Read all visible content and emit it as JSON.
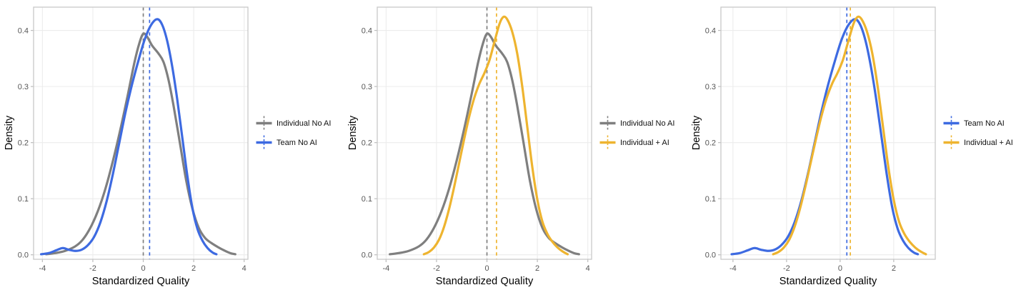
{
  "chart_data": {
    "type": "line",
    "chart_kind": "kernel-density-comparison",
    "title": "",
    "xlabel": "Standardized Quality",
    "ylabel": "Density",
    "grid": true,
    "legend_position": "right-of-each-panel",
    "panel_background": "#ffffff",
    "gridline_color": "#ececec",
    "panel_border_color": "#c8c8c8",
    "tick_mark_color": "#bdbdbd",
    "tick_label_color": "#555555",
    "series_defs": {
      "individual_no_ai": {
        "label": "Individual No AI",
        "color": "#7F7F7F",
        "mean_vline": 0.0,
        "points": [
          [
            -3.85,
            0.001
          ],
          [
            -3.5,
            0.003
          ],
          [
            -3.1,
            0.007
          ],
          [
            -2.7,
            0.015
          ],
          [
            -2.4,
            0.027
          ],
          [
            -2.1,
            0.048
          ],
          [
            -1.8,
            0.078
          ],
          [
            -1.5,
            0.118
          ],
          [
            -1.2,
            0.168
          ],
          [
            -0.9,
            0.225
          ],
          [
            -0.6,
            0.288
          ],
          [
            -0.35,
            0.343
          ],
          [
            -0.15,
            0.378
          ],
          [
            0.0,
            0.394
          ],
          [
            0.15,
            0.389
          ],
          [
            0.35,
            0.373
          ],
          [
            0.6,
            0.359
          ],
          [
            0.8,
            0.344
          ],
          [
            1.0,
            0.312
          ],
          [
            1.2,
            0.266
          ],
          [
            1.45,
            0.2
          ],
          [
            1.7,
            0.133
          ],
          [
            1.95,
            0.082
          ],
          [
            2.2,
            0.048
          ],
          [
            2.45,
            0.03
          ],
          [
            2.7,
            0.021
          ],
          [
            2.95,
            0.014
          ],
          [
            3.2,
            0.008
          ],
          [
            3.45,
            0.003
          ],
          [
            3.65,
            0.001
          ]
        ]
      },
      "team_no_ai": {
        "label": "Team No AI",
        "color": "#3D6AE1",
        "mean_vline": 0.25,
        "points": [
          [
            -4.05,
            0.001
          ],
          [
            -3.75,
            0.003
          ],
          [
            -3.45,
            0.008
          ],
          [
            -3.2,
            0.012
          ],
          [
            -2.95,
            0.009
          ],
          [
            -2.7,
            0.007
          ],
          [
            -2.45,
            0.009
          ],
          [
            -2.2,
            0.017
          ],
          [
            -1.95,
            0.032
          ],
          [
            -1.7,
            0.058
          ],
          [
            -1.45,
            0.096
          ],
          [
            -1.2,
            0.145
          ],
          [
            -0.95,
            0.2
          ],
          [
            -0.7,
            0.255
          ],
          [
            -0.45,
            0.303
          ],
          [
            -0.2,
            0.345
          ],
          [
            0.05,
            0.383
          ],
          [
            0.3,
            0.409
          ],
          [
            0.55,
            0.42
          ],
          [
            0.75,
            0.41
          ],
          [
            0.95,
            0.381
          ],
          [
            1.15,
            0.335
          ],
          [
            1.35,
            0.276
          ],
          [
            1.55,
            0.208
          ],
          [
            1.75,
            0.14
          ],
          [
            1.95,
            0.083
          ],
          [
            2.15,
            0.046
          ],
          [
            2.35,
            0.025
          ],
          [
            2.55,
            0.012
          ],
          [
            2.75,
            0.004
          ],
          [
            2.9,
            0.001
          ]
        ]
      },
      "individual_ai": {
        "label": "Individual + AI",
        "color": "#EEB42F",
        "mean_vline": 0.38,
        "points": [
          [
            -2.5,
            0.001
          ],
          [
            -2.3,
            0.005
          ],
          [
            -2.1,
            0.013
          ],
          [
            -1.9,
            0.027
          ],
          [
            -1.7,
            0.05
          ],
          [
            -1.5,
            0.082
          ],
          [
            -1.3,
            0.121
          ],
          [
            -1.1,
            0.164
          ],
          [
            -0.9,
            0.207
          ],
          [
            -0.7,
            0.247
          ],
          [
            -0.5,
            0.28
          ],
          [
            -0.3,
            0.305
          ],
          [
            -0.1,
            0.324
          ],
          [
            0.1,
            0.347
          ],
          [
            0.3,
            0.38
          ],
          [
            0.5,
            0.412
          ],
          [
            0.65,
            0.424
          ],
          [
            0.8,
            0.42
          ],
          [
            1.0,
            0.398
          ],
          [
            1.2,
            0.359
          ],
          [
            1.4,
            0.3
          ],
          [
            1.6,
            0.228
          ],
          [
            1.8,
            0.156
          ],
          [
            2.0,
            0.098
          ],
          [
            2.2,
            0.059
          ],
          [
            2.4,
            0.037
          ],
          [
            2.6,
            0.023
          ],
          [
            2.8,
            0.013
          ],
          [
            3.0,
            0.006
          ],
          [
            3.2,
            0.001
          ]
        ]
      }
    },
    "panels": [
      {
        "xlabel": "Standardized Quality",
        "ylabel": "Density",
        "series": [
          "individual_no_ai",
          "team_no_ai"
        ],
        "xlim": [
          -4.35,
          4.15
        ],
        "ylim": [
          -0.008,
          0.4415
        ],
        "xticks": [
          {
            "v": -4,
            "label": "-4"
          },
          {
            "v": -2,
            "label": "-2"
          },
          {
            "v": 0,
            "label": "0"
          },
          {
            "v": 2,
            "label": "2"
          },
          {
            "v": 4,
            "label": "4"
          }
        ],
        "yticks": [
          {
            "v": 0,
            "label": "0.0"
          },
          {
            "v": 0.1,
            "label": "0.1"
          },
          {
            "v": 0.2,
            "label": "0.2"
          },
          {
            "v": 0.3,
            "label": "0.3"
          },
          {
            "v": 0.4,
            "label": "0.4"
          }
        ]
      },
      {
        "xlabel": "Standardized Quality",
        "ylabel": "Density",
        "series": [
          "individual_no_ai",
          "individual_ai"
        ],
        "xlim": [
          -4.35,
          4.15
        ],
        "ylim": [
          -0.008,
          0.4415
        ],
        "xticks": [
          {
            "v": -4,
            "label": "-4"
          },
          {
            "v": -2,
            "label": "-2"
          },
          {
            "v": 0,
            "label": "0"
          },
          {
            "v": 2,
            "label": "2"
          },
          {
            "v": 4,
            "label": "4"
          }
        ],
        "yticks": [
          {
            "v": 0,
            "label": "0.0"
          },
          {
            "v": 0.1,
            "label": "0.1"
          },
          {
            "v": 0.2,
            "label": "0.2"
          },
          {
            "v": 0.3,
            "label": "0.3"
          },
          {
            "v": 0.4,
            "label": "0.4"
          }
        ]
      },
      {
        "xlabel": "Standardized Quality",
        "ylabel": "Density",
        "series": [
          "team_no_ai",
          "individual_ai"
        ],
        "xlim": [
          -4.45,
          3.55
        ],
        "ylim": [
          -0.008,
          0.4415
        ],
        "xticks": [
          {
            "v": -4,
            "label": "-4"
          },
          {
            "v": -2,
            "label": "-2"
          },
          {
            "v": 0,
            "label": "0"
          },
          {
            "v": 2,
            "label": "2"
          }
        ],
        "yticks": [
          {
            "v": 0,
            "label": "0.0"
          },
          {
            "v": 0.1,
            "label": "0.1"
          },
          {
            "v": 0.2,
            "label": "0.2"
          },
          {
            "v": 0.3,
            "label": "0.3"
          },
          {
            "v": 0.4,
            "label": "0.4"
          }
        ]
      }
    ]
  }
}
